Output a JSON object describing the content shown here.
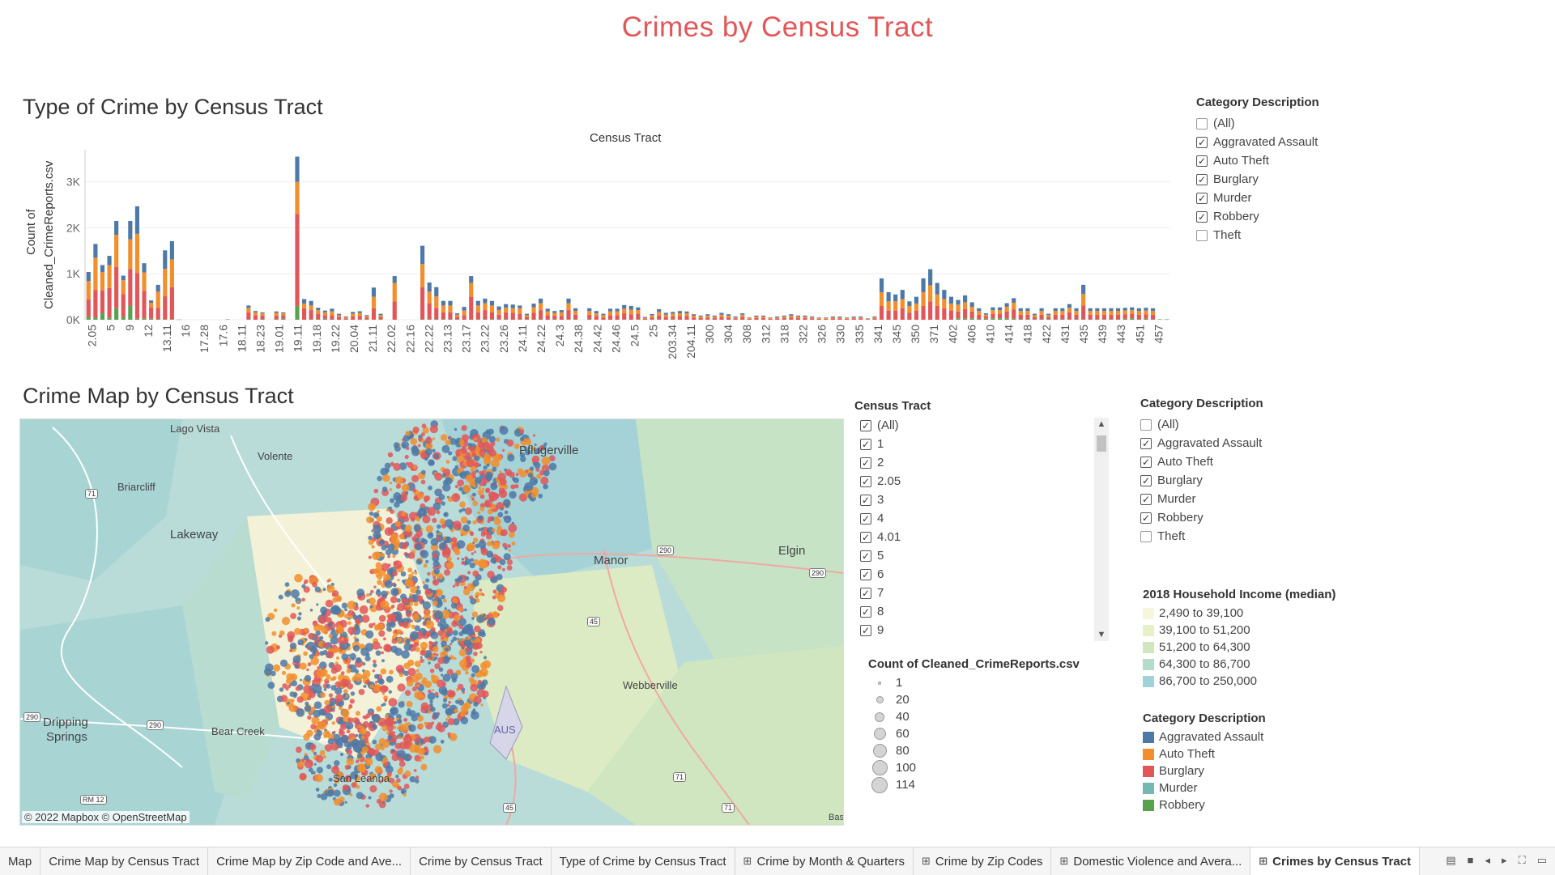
{
  "dashboard_title": "Crimes by Census Tract",
  "bar_sheet": {
    "title": "Type of Crime by Census Tract",
    "x_header": "Census Tract",
    "y_label_line1": "Count of",
    "y_label_line2": "Cleaned_CrimeReports.csv"
  },
  "chart_data": {
    "type": "bar",
    "title": "Type of Crime by Census Tract",
    "xlabel": "Census Tract",
    "ylabel": "Count of Cleaned_CrimeReports.csv",
    "ylim": [
      0,
      3700
    ],
    "y_ticks": [
      "0K",
      "1K",
      "2K",
      "3K"
    ],
    "y_tick_values": [
      0,
      1000,
      2000,
      3000
    ],
    "stacked": true,
    "x_tick_labels": [
      "2.05",
      "5",
      "9",
      "12",
      "13.11",
      "16",
      "17.28",
      "17.6",
      "18.11",
      "18.23",
      "19.01",
      "19.11",
      "19.18",
      "19.22",
      "20.04",
      "21.11",
      "22.02",
      "22.16",
      "22.22",
      "23.13",
      "23.17",
      "23.22",
      "23.26",
      "24.11",
      "24.22",
      "24.3",
      "24.38",
      "24.42",
      "24.46",
      "24.5",
      "25",
      "203.34",
      "204.11",
      "300",
      "304",
      "308",
      "312",
      "318",
      "322",
      "326",
      "330",
      "335",
      "341",
      "345",
      "350",
      "371",
      "402",
      "406",
      "410",
      "414",
      "418",
      "422",
      "431",
      "435",
      "439",
      "443",
      "451",
      "457"
    ],
    "series": [
      {
        "name": "Robbery",
        "color": "#59a14f",
        "values": [
          60,
          50,
          140,
          40,
          250,
          60,
          300,
          20,
          30,
          20,
          10,
          10,
          10,
          5,
          0,
          0,
          0,
          0,
          0,
          0,
          10,
          0,
          0,
          10,
          0,
          10,
          0,
          10,
          20,
          0,
          300,
          0,
          10,
          10,
          20,
          0,
          0,
          0,
          0,
          5,
          10,
          0,
          10,
          0,
          0,
          0,
          0,
          0,
          10,
          10,
          10,
          10,
          10,
          10,
          0,
          0,
          10,
          10,
          10,
          10,
          10,
          0,
          10,
          10,
          0,
          10,
          0,
          10,
          0,
          10,
          10,
          0,
          10,
          0,
          0,
          0,
          0,
          10,
          0,
          10,
          0,
          5,
          10,
          0,
          10,
          0,
          0,
          0,
          0,
          0,
          0,
          0,
          0,
          0,
          0,
          0,
          0,
          0,
          0,
          0,
          0,
          0,
          0,
          0,
          0,
          0,
          0,
          0,
          0,
          0,
          0,
          0,
          0,
          0,
          0,
          0,
          0,
          0,
          0,
          0,
          0,
          0,
          0,
          0,
          0,
          30,
          30,
          30,
          10,
          20,
          30,
          30,
          30,
          20,
          10,
          10,
          10,
          10,
          10,
          10,
          10,
          10,
          10,
          10,
          10,
          10,
          10,
          10,
          10,
          20,
          30,
          10,
          20,
          10,
          10,
          10
        ]
      },
      {
        "name": "Murder",
        "color": "#76b7b2",
        "values": [
          0,
          0,
          0,
          0,
          0,
          0,
          0,
          0,
          0,
          0,
          0,
          0,
          0,
          0,
          0,
          0,
          0,
          0,
          0,
          0,
          0,
          0,
          0,
          0,
          0,
          0,
          0,
          0,
          0,
          0,
          0,
          0,
          0,
          0,
          0,
          0,
          0,
          0,
          0,
          0,
          0,
          0,
          0,
          0,
          0,
          0,
          0,
          0,
          0,
          0,
          0,
          0,
          0,
          0,
          0,
          0,
          0,
          0,
          0,
          0,
          0,
          0,
          0,
          0,
          0,
          0,
          0,
          0,
          0,
          0,
          0,
          0,
          0,
          0,
          0,
          0,
          0,
          0,
          0,
          0,
          0,
          0,
          0,
          0,
          0,
          0,
          0,
          0,
          0,
          0,
          0,
          0,
          0,
          0,
          0,
          0,
          0,
          0,
          0,
          0,
          0,
          0,
          0,
          0,
          0,
          0,
          0,
          0,
          0,
          0,
          0,
          0,
          0,
          0,
          0,
          0,
          0,
          0,
          0,
          0,
          0,
          0,
          0,
          0,
          0,
          0,
          0,
          0,
          0,
          0,
          0,
          0,
          0,
          0,
          0,
          0,
          0,
          0,
          0,
          0,
          0,
          0,
          0,
          0,
          0,
          0,
          0,
          0,
          0,
          0,
          0,
          0,
          0,
          0,
          0,
          0
        ]
      },
      {
        "name": "Burglary",
        "color": "#e15759",
        "values": [
          380,
          600,
          500,
          650,
          900,
          500,
          800,
          1000,
          600,
          250,
          250,
          500,
          700,
          0,
          0,
          0,
          0,
          0,
          0,
          0,
          0,
          0,
          0,
          150,
          100,
          80,
          0,
          80,
          80,
          0,
          2000,
          250,
          200,
          120,
          80,
          100,
          60,
          30,
          70,
          80,
          40,
          250,
          50,
          0,
          400,
          0,
          0,
          0,
          700,
          350,
          250,
          150,
          150,
          50,
          100,
          500,
          150,
          200,
          150,
          100,
          150,
          150,
          120,
          50,
          150,
          200,
          100,
          80,
          80,
          200,
          100,
          0,
          100,
          80,
          50,
          100,
          100,
          130,
          120,
          120,
          20,
          50,
          80,
          60,
          60,
          80,
          80,
          50,
          40,
          50,
          40,
          60,
          50,
          30,
          60,
          20,
          40,
          40,
          20,
          30,
          40,
          50,
          40,
          40,
          30,
          20,
          20,
          30,
          30,
          20,
          30,
          30,
          10,
          30,
          300,
          200,
          200,
          250,
          150,
          200,
          300,
          400,
          300,
          250,
          200,
          150,
          200,
          150,
          100,
          50,
          100,
          100,
          150,
          200,
          100,
          100,
          50,
          100,
          50,
          100,
          100,
          150,
          100,
          300,
          100,
          100,
          100,
          100,
          100,
          100,
          100,
          100,
          100,
          100
        ]
      },
      {
        "name": "Auto Theft",
        "color": "#f28e2b",
        "values": [
          400,
          700,
          400,
          500,
          700,
          300,
          650,
          850,
          400,
          100,
          350,
          600,
          600,
          0,
          0,
          0,
          0,
          0,
          0,
          0,
          0,
          0,
          0,
          100,
          60,
          50,
          0,
          60,
          40,
          0,
          700,
          100,
          100,
          80,
          60,
          80,
          40,
          20,
          60,
          60,
          30,
          250,
          40,
          0,
          400,
          0,
          0,
          0,
          500,
          250,
          250,
          150,
          150,
          50,
          100,
          300,
          150,
          150,
          150,
          100,
          100,
          100,
          120,
          40,
          120,
          150,
          80,
          60,
          80,
          150,
          80,
          0,
          80,
          60,
          50,
          80,
          80,
          100,
          100,
          80,
          20,
          40,
          80,
          50,
          60,
          60,
          60,
          40,
          30,
          40,
          30,
          50,
          40,
          20,
          50,
          20,
          30,
          30,
          20,
          20,
          30,
          40,
          30,
          30,
          20,
          20,
          20,
          20,
          20,
          20,
          20,
          20,
          10,
          20,
          300,
          200,
          200,
          200,
          150,
          150,
          300,
          350,
          250,
          200,
          150,
          150,
          150,
          100,
          80,
          40,
          80,
          80,
          100,
          150,
          80,
          80,
          40,
          80,
          40,
          80,
          80,
          100,
          80,
          250,
          80,
          80,
          80,
          80,
          80,
          80,
          80,
          80,
          80,
          80
        ]
      },
      {
        "name": "Aggravated Assault",
        "color": "#4e79a7",
        "values": [
          200,
          300,
          150,
          200,
          300,
          100,
          400,
          600,
          200,
          50,
          150,
          400,
          400,
          0,
          0,
          0,
          0,
          0,
          0,
          0,
          0,
          0,
          0,
          50,
          30,
          20,
          0,
          30,
          20,
          0,
          550,
          100,
          100,
          50,
          40,
          60,
          30,
          20,
          40,
          40,
          20,
          200,
          30,
          0,
          150,
          0,
          0,
          0,
          400,
          200,
          200,
          100,
          100,
          30,
          80,
          150,
          100,
          100,
          100,
          80,
          80,
          80,
          60,
          30,
          80,
          100,
          60,
          40,
          50,
          100,
          60,
          0,
          60,
          50,
          30,
          60,
          60,
          80,
          80,
          60,
          20,
          30,
          60,
          40,
          40,
          50,
          40,
          30,
          20,
          30,
          20,
          40,
          30,
          20,
          30,
          10,
          20,
          20,
          10,
          20,
          20,
          30,
          20,
          20,
          20,
          10,
          10,
          20,
          20,
          10,
          20,
          20,
          10,
          20,
          300,
          200,
          150,
          200,
          100,
          150,
          300,
          350,
          250,
          200,
          150,
          100,
          150,
          100,
          60,
          30,
          60,
          60,
          80,
          100,
          60,
          60,
          30,
          60,
          30,
          60,
          60,
          80,
          60,
          200,
          60,
          60,
          60,
          60,
          60,
          60,
          60,
          60,
          60,
          60
        ]
      }
    ]
  },
  "bar_filter": {
    "title": "Category Description",
    "items": [
      {
        "label": "(All)",
        "checked": false
      },
      {
        "label": "Aggravated Assault",
        "checked": true
      },
      {
        "label": "Auto Theft",
        "checked": true
      },
      {
        "label": "Burglary",
        "checked": true
      },
      {
        "label": "Murder",
        "checked": true
      },
      {
        "label": "Robbery",
        "checked": true
      },
      {
        "label": "Theft",
        "checked": false
      }
    ]
  },
  "map_sheet": {
    "title": "Crime Map by Census Tract",
    "attribution": "© 2022 Mapbox © OpenStreetMap",
    "places": [
      {
        "id": "lago-vista",
        "label": "Lago Vista"
      },
      {
        "id": "volente",
        "label": "Volente"
      },
      {
        "id": "briarcliff",
        "label": "Briarcliff"
      },
      {
        "id": "lakeway",
        "label": "Lakeway"
      },
      {
        "id": "pflugerville",
        "label": "Pflugerville"
      },
      {
        "id": "manor",
        "label": "Manor"
      },
      {
        "id": "elgin",
        "label": "Elgin"
      },
      {
        "id": "webberville",
        "label": "Webberville"
      },
      {
        "id": "dripping-springs-1",
        "label": "Dripping"
      },
      {
        "id": "dripping-springs-2",
        "label": "Springs"
      },
      {
        "id": "bear-creek",
        "label": "Bear Creek"
      },
      {
        "id": "aus",
        "label": "AUS"
      },
      {
        "id": "san-leanna",
        "label": "San Leanna"
      },
      {
        "id": "bastrop",
        "label": "Bas"
      }
    ],
    "shields": [
      "71",
      "290",
      "290",
      "290",
      "290",
      "45",
      "71",
      "71",
      "45",
      "RM 12"
    ],
    "colors": {
      "aggravated_assault": "#4e79a7",
      "auto_theft": "#f28e2b",
      "burglary": "#e15759"
    }
  },
  "tract_filter": {
    "title": "Census Tract",
    "items": [
      {
        "label": "(All)",
        "checked": true
      },
      {
        "label": "1",
        "checked": true
      },
      {
        "label": "2",
        "checked": true
      },
      {
        "label": "2.05",
        "checked": true
      },
      {
        "label": "3",
        "checked": true
      },
      {
        "label": "4",
        "checked": true
      },
      {
        "label": "4.01",
        "checked": true
      },
      {
        "label": "5",
        "checked": true
      },
      {
        "label": "6",
        "checked": true
      },
      {
        "label": "7",
        "checked": true
      },
      {
        "label": "8",
        "checked": true
      },
      {
        "label": "9",
        "checked": true
      }
    ]
  },
  "map_filter": {
    "title": "Category Description",
    "items": [
      {
        "label": "(All)",
        "checked": false
      },
      {
        "label": "Aggravated Assault",
        "checked": true
      },
      {
        "label": "Auto Theft",
        "checked": true
      },
      {
        "label": "Burglary",
        "checked": true
      },
      {
        "label": "Murder",
        "checked": true
      },
      {
        "label": "Robbery",
        "checked": true
      },
      {
        "label": "Theft",
        "checked": false
      }
    ]
  },
  "size_legend": {
    "title": "Count of Cleaned_CrimeReports.csv",
    "items": [
      "1",
      "20",
      "40",
      "60",
      "80",
      "100",
      "114"
    ]
  },
  "income_legend": {
    "title": "2018 Household Income (median)",
    "items": [
      {
        "label": "2,490 to 39,100",
        "color": "#f6f6de"
      },
      {
        "label": "39,100 to 51,200",
        "color": "#e8f0c8"
      },
      {
        "label": "51,200 to 64,300",
        "color": "#cfe6c0"
      },
      {
        "label": "64,300 to 86,700",
        "color": "#b5dcc8"
      },
      {
        "label": "86,700 to 250,000",
        "color": "#9fd3d8"
      }
    ]
  },
  "color_legend": {
    "title": "Category Description",
    "items": [
      {
        "label": "Aggravated Assault",
        "color": "#4e79a7"
      },
      {
        "label": "Auto Theft",
        "color": "#f28e2b"
      },
      {
        "label": "Burglary",
        "color": "#e15759"
      },
      {
        "label": "Murder",
        "color": "#76b7b2"
      },
      {
        "label": "Robbery",
        "color": "#59a14f"
      }
    ]
  },
  "tabs": [
    {
      "label": "Map",
      "grid": false,
      "active": false
    },
    {
      "label": "Crime Map by Census Tract",
      "grid": false,
      "active": false
    },
    {
      "label": "Crime Map by Zip Code and Ave...",
      "grid": false,
      "active": false
    },
    {
      "label": "Crime by Census Tract",
      "grid": false,
      "active": false
    },
    {
      "label": "Type of Crime by Census Tract",
      "grid": false,
      "active": false
    },
    {
      "label": "Crime by Month & Quarters",
      "grid": true,
      "active": false
    },
    {
      "label": "Crime by Zip Codes",
      "grid": true,
      "active": false
    },
    {
      "label": "Domestic Violence and Avera...",
      "grid": true,
      "active": false
    },
    {
      "label": "Crimes by Census Tract",
      "grid": true,
      "active": true
    }
  ]
}
